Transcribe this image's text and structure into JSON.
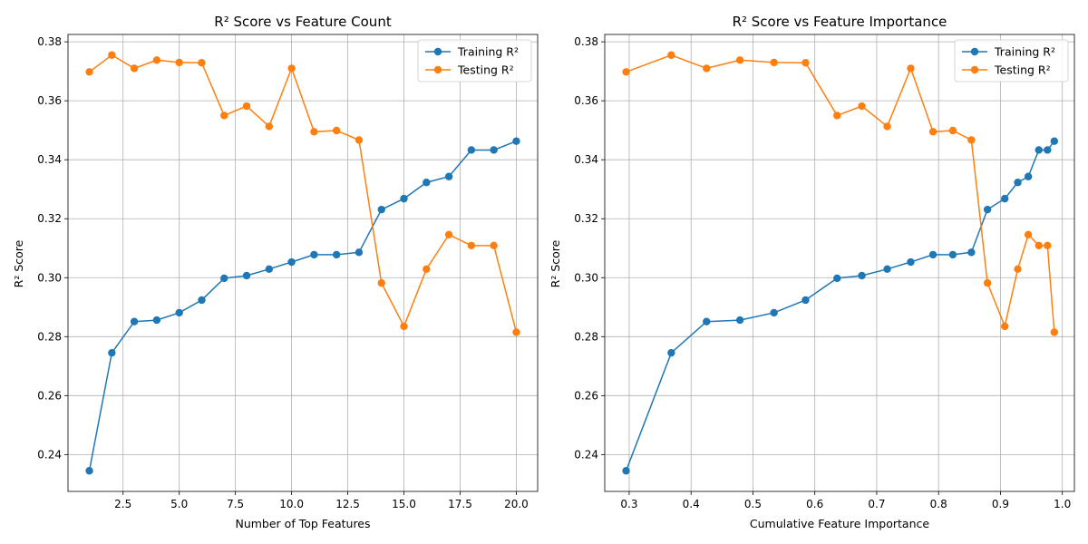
{
  "chart_data": [
    {
      "type": "line",
      "title": "R² Score vs Feature Count",
      "xlabel": "Number of Top Features",
      "ylabel": "R² Score",
      "xlim": [
        0.05,
        20.95
      ],
      "ylim": [
        0.2275,
        0.3825
      ],
      "xticks": [
        2.5,
        5.0,
        7.5,
        10.0,
        12.5,
        15.0,
        17.5,
        20.0
      ],
      "xtick_labels": [
        "2.5",
        "5.0",
        "7.5",
        "10.0",
        "12.5",
        "15.0",
        "17.5",
        "20.0"
      ],
      "yticks": [
        0.24,
        0.26,
        0.28,
        0.3,
        0.32,
        0.34,
        0.36,
        0.38
      ],
      "ytick_labels": [
        "0.24",
        "0.26",
        "0.28",
        "0.30",
        "0.32",
        "0.34",
        "0.36",
        "0.38"
      ],
      "grid": true,
      "legend": "top-right",
      "x": [
        1,
        2,
        3,
        4,
        5,
        6,
        7,
        8,
        9,
        10,
        11,
        12,
        13,
        14,
        15,
        16,
        17,
        18,
        19,
        20
      ],
      "series": [
        {
          "name": "Training R²",
          "color": "#1f77b4",
          "values": [
            0.2345,
            0.2745,
            0.2851,
            0.2856,
            0.2881,
            0.2924,
            0.2998,
            0.3007,
            0.3029,
            0.3053,
            0.3078,
            0.3078,
            0.3086,
            0.3231,
            0.3268,
            0.3323,
            0.3343,
            0.3433,
            0.3433,
            0.3463
          ]
        },
        {
          "name": "Testing R²",
          "color": "#ff7f0e",
          "values": [
            0.3698,
            0.3755,
            0.371,
            0.3738,
            0.373,
            0.3729,
            0.355,
            0.3582,
            0.3513,
            0.371,
            0.3495,
            0.3499,
            0.3467,
            0.2982,
            0.2835,
            0.3029,
            0.3146,
            0.3109,
            0.3109,
            0.2815
          ]
        }
      ]
    },
    {
      "type": "line",
      "title": "R² Score vs Feature Importance",
      "xlabel": "Cumulative Feature Importance",
      "ylabel": "R² Score",
      "xlim": [
        0.2605,
        1.0195
      ],
      "ylim": [
        0.2275,
        0.3825
      ],
      "xticks": [
        0.3,
        0.4,
        0.5,
        0.6,
        0.7,
        0.8,
        0.9,
        1.0
      ],
      "xtick_labels": [
        "0.3",
        "0.4",
        "0.5",
        "0.6",
        "0.7",
        "0.8",
        "0.9",
        "1.0"
      ],
      "yticks": [
        0.24,
        0.26,
        0.28,
        0.3,
        0.32,
        0.34,
        0.36,
        0.38
      ],
      "ytick_labels": [
        "0.24",
        "0.26",
        "0.28",
        "0.30",
        "0.32",
        "0.34",
        "0.36",
        "0.38"
      ],
      "grid": true,
      "legend": "top-right",
      "x": [
        0.295,
        0.368,
        0.425,
        0.479,
        0.534,
        0.585,
        0.636,
        0.676,
        0.717,
        0.755,
        0.791,
        0.823,
        0.853,
        0.879,
        0.907,
        0.928,
        0.945,
        0.962,
        0.976,
        0.987
      ],
      "series": [
        {
          "name": "Training R²",
          "color": "#1f77b4",
          "values": [
            0.2345,
            0.2745,
            0.2851,
            0.2856,
            0.2881,
            0.2924,
            0.2998,
            0.3007,
            0.3029,
            0.3053,
            0.3078,
            0.3078,
            0.3086,
            0.3231,
            0.3268,
            0.3323,
            0.3343,
            0.3433,
            0.3433,
            0.3463
          ]
        },
        {
          "name": "Testing R²",
          "color": "#ff7f0e",
          "values": [
            0.3698,
            0.3755,
            0.371,
            0.3738,
            0.373,
            0.3729,
            0.355,
            0.3582,
            0.3513,
            0.371,
            0.3495,
            0.3499,
            0.3467,
            0.2982,
            0.2835,
            0.3029,
            0.3146,
            0.3109,
            0.3109,
            0.2815
          ]
        }
      ]
    }
  ]
}
